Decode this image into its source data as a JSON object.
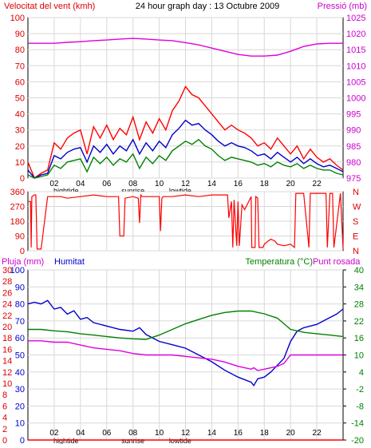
{
  "header": {
    "left_title": "Velocitat del vent (kmh)",
    "center_title": "24 hour graph day : 13 Octubre 2009",
    "right_title": "Pressió (mb)"
  },
  "wind_dir_labels": [
    "N",
    "W",
    "S",
    "E",
    "N"
  ],
  "bottom_header": {
    "pluja": "Pluja (mm)",
    "humitat": "Humitat",
    "temperatura": "Temperatura (°C)",
    "punt_rosada": "Punt rosada"
  },
  "x_labels": {
    "hours": [
      "02",
      "04",
      "06",
      "08",
      "10",
      "12",
      "14",
      "16",
      "18",
      "20",
      "22"
    ],
    "events": [
      {
        "label": "hightide",
        "hour": 2.9
      },
      {
        "label": "sunrise",
        "hour": 8.0
      },
      {
        "label": "lowtide",
        "hour": 11.6
      }
    ]
  },
  "chart_data": [
    {
      "type": "line",
      "title": "Velocitat del vent (kmh)",
      "xlabel": "",
      "ylabel": "Velocitat del vent (kmh)",
      "y2label": "Pressió (mb)",
      "xlim": [
        0,
        24
      ],
      "ylim": [
        0,
        100
      ],
      "y2lim": [
        975,
        1025
      ],
      "yticks": [
        0,
        10,
        20,
        30,
        40,
        50,
        60,
        70,
        80,
        90,
        100
      ],
      "y2ticks": [
        975,
        980,
        985,
        990,
        995,
        1000,
        1005,
        1010,
        1015,
        1020,
        1025
      ],
      "grid": true,
      "series": [
        {
          "name": "Velocitat del vent (kmh)",
          "color": "#ff0000",
          "x": [
            0,
            0.5,
            1,
            1.5,
            2,
            2.5,
            3,
            3.5,
            4,
            4.5,
            5,
            5.5,
            6,
            6.5,
            7,
            7.5,
            8,
            8.5,
            9,
            9.5,
            10,
            10.5,
            11,
            11.5,
            12,
            12.5,
            13,
            13.5,
            14,
            14.5,
            15,
            15.5,
            16,
            16.5,
            17,
            17.5,
            18,
            18.5,
            19,
            19.5,
            20,
            20.5,
            21,
            21.5,
            22,
            22.5,
            23,
            23.5,
            24
          ],
          "values": [
            10,
            0,
            3,
            5,
            22,
            18,
            25,
            28,
            30,
            15,
            32,
            25,
            33,
            24,
            31,
            27,
            38,
            24,
            35,
            28,
            37,
            30,
            42,
            48,
            57,
            52,
            50,
            45,
            40,
            35,
            30,
            33,
            30,
            28,
            25,
            20,
            22,
            18,
            25,
            20,
            15,
            20,
            12,
            18,
            13,
            10,
            12,
            8,
            5
          ]
        },
        {
          "name": "",
          "color": "#0000cc",
          "x": [
            0,
            0.5,
            1,
            1.5,
            2,
            2.5,
            3,
            3.5,
            4,
            4.5,
            5,
            5.5,
            6,
            6.5,
            7,
            7.5,
            8,
            8.5,
            9,
            9.5,
            10,
            10.5,
            11,
            11.5,
            12,
            12.5,
            13,
            13.5,
            14,
            14.5,
            15,
            15.5,
            16,
            16.5,
            17,
            17.5,
            18,
            18.5,
            19,
            19.5,
            20,
            20.5,
            21,
            21.5,
            22,
            22.5,
            23,
            23.5,
            24
          ],
          "values": [
            5,
            0,
            2,
            3,
            14,
            12,
            16,
            18,
            19,
            10,
            20,
            16,
            21,
            15,
            20,
            17,
            24,
            15,
            22,
            17,
            23,
            19,
            27,
            31,
            36,
            33,
            34,
            30,
            27,
            23,
            20,
            22,
            20,
            19,
            17,
            14,
            15,
            12,
            16,
            13,
            10,
            13,
            9,
            12,
            9,
            7,
            8,
            6,
            4
          ]
        },
        {
          "name": "",
          "color": "#008000",
          "x": [
            0,
            0.5,
            1,
            1.5,
            2,
            2.5,
            3,
            3.5,
            4,
            4.5,
            5,
            5.5,
            6,
            6.5,
            7,
            7.5,
            8,
            8.5,
            9,
            9.5,
            10,
            10.5,
            11,
            11.5,
            12,
            12.5,
            13,
            13.5,
            14,
            14.5,
            15,
            15.5,
            16,
            16.5,
            17,
            17.5,
            18,
            18.5,
            19,
            19.5,
            20,
            20.5,
            21,
            21.5,
            22,
            22.5,
            23,
            23.5,
            24
          ],
          "values": [
            2,
            0,
            1,
            2,
            8,
            6,
            10,
            11,
            12,
            4,
            13,
            9,
            13,
            8,
            12,
            10,
            15,
            6,
            13,
            9,
            14,
            11,
            17,
            20,
            23,
            21,
            24,
            20,
            18,
            14,
            11,
            13,
            12,
            11,
            10,
            8,
            9,
            7,
            10,
            8,
            7,
            9,
            6,
            8,
            6,
            5,
            5,
            3,
            2
          ]
        },
        {
          "name": "Pressió (mb)",
          "color": "#dd00dd",
          "axis": "right",
          "x": [
            0,
            1,
            2,
            3,
            4,
            5,
            6,
            7,
            8,
            9,
            10,
            11,
            12,
            13,
            14,
            15,
            16,
            17,
            18,
            19,
            20,
            21,
            22,
            23,
            24
          ],
          "values": [
            1017,
            1017,
            1017,
            1017.3,
            1017.5,
            1017.8,
            1018,
            1018.3,
            1018.5,
            1018.3,
            1018,
            1017.8,
            1017.2,
            1016.5,
            1015.5,
            1014.5,
            1013.5,
            1013,
            1013,
            1013.3,
            1014.5,
            1016,
            1016.8,
            1017,
            1017
          ]
        }
      ]
    },
    {
      "type": "line",
      "title": "",
      "ylabel": "",
      "xlim": [
        0,
        24
      ],
      "ylim": [
        0,
        360
      ],
      "yticks": [
        0,
        90,
        180,
        270,
        360
      ],
      "y2ticklabels": [
        "N",
        "W",
        "S",
        "E",
        "N"
      ],
      "grid": true,
      "series": [
        {
          "name": "",
          "color": "#ff0000",
          "x": [
            0,
            0.2,
            0.25,
            0.3,
            0.5,
            0.6,
            0.7,
            1.0,
            1.5,
            2.0,
            2.5,
            3,
            4,
            5,
            6,
            6.9,
            7.0,
            7.3,
            7.4,
            8,
            8.4,
            8.5,
            8.6,
            8.7,
            9,
            10,
            10.1,
            10.2,
            10.3,
            11,
            12,
            13,
            14,
            15,
            15.2,
            15.3,
            15.5,
            15.6,
            15.7,
            15.9,
            16,
            16.1,
            16.3,
            16.5,
            17,
            17.05,
            17.3,
            17.35,
            17.5,
            17.6,
            17.9,
            18,
            18.3,
            18.5,
            18.8,
            19,
            19.5,
            20,
            20.3,
            20.4,
            20.5,
            21,
            21.4,
            21.5,
            22,
            22.7,
            22.8,
            23,
            23.2,
            23.3,
            23.8,
            24
          ],
          "values": [
            300,
            300,
            20,
            330,
            340,
            340,
            10,
            10,
            330,
            330,
            330,
            320,
            330,
            340,
            330,
            330,
            90,
            90,
            320,
            330,
            320,
            170,
            340,
            330,
            330,
            330,
            120,
            320,
            330,
            330,
            340,
            330,
            340,
            340,
            340,
            200,
            300,
            20,
            310,
            30,
            300,
            30,
            280,
            250,
            330,
            20,
            20,
            330,
            320,
            20,
            20,
            40,
            60,
            70,
            60,
            40,
            30,
            40,
            20,
            350,
            350,
            350,
            20,
            350,
            350,
            350,
            20,
            350,
            350,
            20,
            350,
            10
          ]
        }
      ]
    },
    {
      "type": "line",
      "title": "Humitat",
      "xlim": [
        0,
        24
      ],
      "ylim": [
        0,
        100
      ],
      "yticks": [
        0,
        10,
        20,
        30,
        40,
        50,
        60,
        70,
        80,
        90,
        100
      ],
      "y_rain_ticks": [
        0,
        2,
        4,
        6,
        8,
        10,
        12,
        14,
        16,
        18,
        20,
        22,
        24,
        26,
        28,
        30
      ],
      "y2lim": [
        -20,
        40
      ],
      "y2ticks": [
        -20,
        -14,
        -8,
        -2,
        4,
        10,
        16,
        22,
        28,
        34,
        40
      ],
      "grid": true,
      "series": [
        {
          "name": "Humitat",
          "color": "#0000cc",
          "x": [
            0,
            0.5,
            1,
            1.5,
            2,
            2.5,
            3,
            3.5,
            4,
            4.5,
            5,
            6,
            7,
            8,
            8.5,
            9,
            9.5,
            10,
            11,
            12,
            13,
            14,
            15,
            16,
            17,
            17.2,
            17.5,
            18,
            18.5,
            19,
            19.5,
            20,
            20.5,
            21,
            21.5,
            22,
            22.5,
            23,
            23.5,
            24
          ],
          "values": [
            80,
            81,
            80,
            82,
            77,
            78,
            74,
            76,
            71,
            72,
            69,
            67,
            65,
            64,
            66,
            62,
            60,
            58,
            56,
            54,
            50,
            46,
            41,
            37,
            34,
            32,
            36,
            37,
            40,
            44,
            48,
            58,
            64,
            66,
            67,
            68,
            70,
            72,
            74,
            77
          ]
        },
        {
          "name": "Temperatura (°C)",
          "color": "#008000",
          "axis": "right",
          "x": [
            0,
            1,
            2,
            3,
            4,
            5,
            6,
            7,
            8,
            9,
            10,
            11,
            12,
            13,
            14,
            15,
            16,
            17,
            18,
            19,
            20,
            21,
            22,
            23,
            24
          ],
          "values": [
            19,
            19,
            18.5,
            18.2,
            17.5,
            17,
            16.5,
            16,
            15.7,
            15.5,
            17,
            19,
            21,
            22.5,
            24,
            25,
            25.5,
            25.5,
            24.5,
            23,
            19,
            18,
            17.5,
            17,
            16.5
          ]
        },
        {
          "name": "Punt rosada",
          "color": "#dd00dd",
          "axis": "right",
          "x": [
            0,
            1,
            2,
            3,
            4,
            5,
            6,
            7,
            8,
            9,
            10,
            11,
            12,
            13,
            14,
            15,
            16,
            17,
            17.2,
            17.5,
            18,
            19,
            19.5,
            20,
            21,
            22,
            23,
            24
          ],
          "values": [
            15,
            15,
            14.5,
            14.5,
            13.5,
            12.5,
            12,
            11.5,
            10.5,
            10,
            10,
            10,
            9.5,
            9,
            8.5,
            7.5,
            6,
            5,
            5.5,
            4.5,
            5,
            6,
            7,
            10,
            10,
            10,
            10,
            10
          ]
        },
        {
          "name": "Pluja (mm)",
          "color": "#ff0000",
          "x": [
            0,
            24
          ],
          "values": [
            0,
            0
          ]
        }
      ]
    }
  ]
}
